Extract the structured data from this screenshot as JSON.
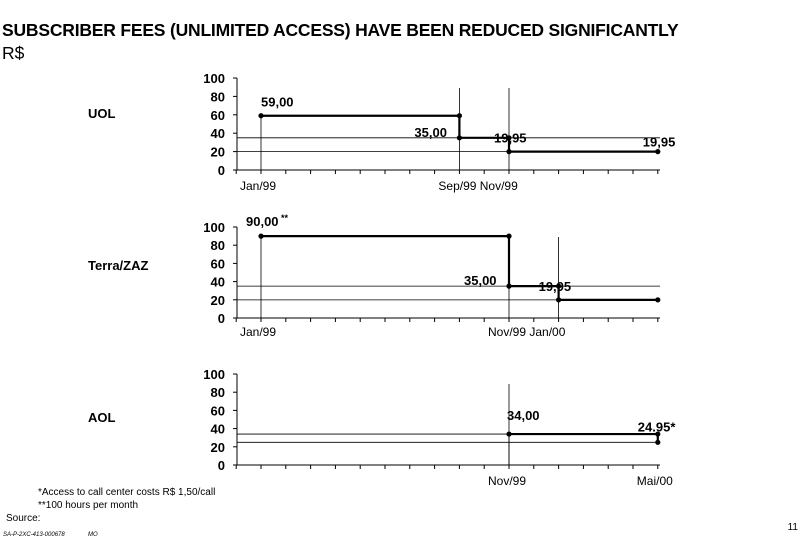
{
  "header": {
    "title": "SUBSCRIBER FEES (UNLIMITED ACCESS) HAVE BEEN REDUCED SIGNIFICANTLY",
    "subtitle": "R$"
  },
  "chart_data": [
    {
      "type": "line",
      "name": "UOL",
      "y_ticks": [
        "100",
        "80",
        "60",
        "40",
        "20",
        "0"
      ],
      "ylim": [
        0,
        100
      ],
      "x_labels": [
        {
          "label": "Jan/99",
          "month": 0
        },
        {
          "label": "Sep/99 Nov/99",
          "month": 8
        }
      ],
      "steps": [
        {
          "from": 0,
          "to": 8,
          "value": 59.0
        },
        {
          "from": 8,
          "to": 10,
          "value": 35.0
        },
        {
          "from": 10,
          "to": 16,
          "value": 19.95
        }
      ],
      "data_labels": [
        {
          "text": "59,00",
          "month": 0,
          "value": 59.0
        },
        {
          "text": "35,00",
          "month": 8,
          "value": 35.0
        },
        {
          "text": "19,95",
          "month": 10,
          "value": 19.95
        },
        {
          "text": "19,95",
          "month": 16,
          "value": 19.95
        }
      ],
      "ref_lines": [
        35.0,
        19.95
      ],
      "drops": [
        8,
        10
      ]
    },
    {
      "type": "line",
      "name": "Terra/ZAZ",
      "y_ticks": [
        "100",
        "80",
        "60",
        "40",
        "20",
        "0"
      ],
      "ylim": [
        0,
        100
      ],
      "x_labels": [
        {
          "label": "Jan/99",
          "month": 0
        },
        {
          "label": "Nov/99 Jan/00",
          "month": 10
        }
      ],
      "steps": [
        {
          "from": 0,
          "to": 10,
          "value": 90.0
        },
        {
          "from": 10,
          "to": 12,
          "value": 35.0
        },
        {
          "from": 12,
          "to": 16,
          "value": 19.95
        }
      ],
      "data_labels": [
        {
          "text": "90,00",
          "month": 0,
          "value": 90.0,
          "suffix": "**"
        },
        {
          "text": "35,00",
          "month": 10,
          "value": 35.0
        },
        {
          "text": "19,95",
          "month": 12,
          "value": 19.95
        }
      ],
      "ref_lines": [
        35.0,
        19.95
      ],
      "drops": [
        10,
        12
      ]
    },
    {
      "type": "line",
      "name": "AOL",
      "y_ticks": [
        "100",
        "80",
        "60",
        "40",
        "20",
        "0"
      ],
      "ylim": [
        0,
        100
      ],
      "x_labels": [
        {
          "label": "Nov/99",
          "month": 10
        },
        {
          "label": "Mai/00",
          "month": 16
        }
      ],
      "steps": [
        {
          "from": 10,
          "to": 16,
          "value": 34.0
        }
      ],
      "end_point": {
        "month": 16,
        "value": 24.95
      },
      "data_labels": [
        {
          "text": "34,00",
          "month": 10,
          "value": 34.0
        },
        {
          "text": "24.95*",
          "month": 16,
          "value": 24.95
        }
      ],
      "ref_lines": [
        34.0,
        24.95
      ],
      "drops": [
        10
      ]
    }
  ],
  "footnotes": {
    "note1": "*Access to call center costs R$ 1,50/call",
    "note2": "**100 hours per month",
    "source": "Source:",
    "code": "SA-P-2XC-413-000678",
    "initials": "MO"
  },
  "page_number": "11"
}
